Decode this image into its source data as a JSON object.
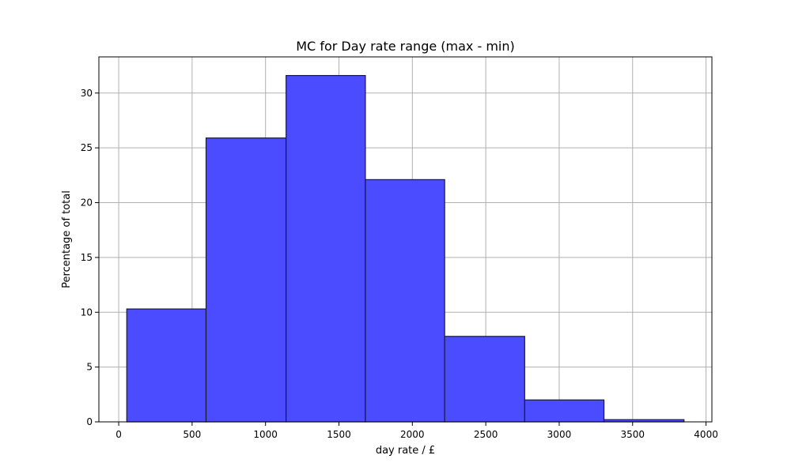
{
  "chart_data": {
    "type": "bar",
    "title": "MC for Day rate range (max - min)",
    "xlabel": "day rate / £",
    "ylabel": "Percentage of total",
    "xlim": [
      -135,
      4040
    ],
    "ylim": [
      0,
      33.3
    ],
    "xticks": [
      0,
      500,
      1000,
      1500,
      2000,
      2500,
      3000,
      3500,
      4000
    ],
    "yticks": [
      0,
      5,
      10,
      15,
      20,
      25,
      30
    ],
    "grid": true,
    "bar_color": "#4b4bff",
    "bins": [
      {
        "x0": 55,
        "x1": 595,
        "value": 10.3
      },
      {
        "x0": 595,
        "x1": 1140,
        "value": 25.9
      },
      {
        "x0": 1140,
        "x1": 1680,
        "value": 31.6
      },
      {
        "x0": 1680,
        "x1": 2220,
        "value": 22.1
      },
      {
        "x0": 2220,
        "x1": 2765,
        "value": 7.8
      },
      {
        "x0": 2765,
        "x1": 3305,
        "value": 2.0
      },
      {
        "x0": 3305,
        "x1": 3850,
        "value": 0.2
      }
    ]
  }
}
